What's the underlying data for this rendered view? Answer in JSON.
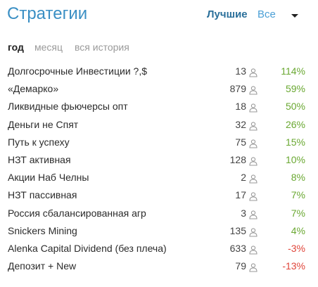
{
  "header": {
    "title": "Стратегии",
    "filter_best": "Лучшие",
    "filter_all": "Все",
    "dropdown_icon": "triangle-down-icon"
  },
  "periods": [
    {
      "label": "год",
      "active": true
    },
    {
      "label": "месяц",
      "active": false
    },
    {
      "label": "вся история",
      "active": false
    }
  ],
  "colors": {
    "title": "#3a8fc4",
    "positive": "#6aa832",
    "negative": "#e0453a",
    "muted": "#9a9a9a"
  },
  "strategies": [
    {
      "name": "Долгосрочные Инвестиции ?,$",
      "subscribers": "13",
      "return": "114%",
      "sign": "positive"
    },
    {
      "name": "«Демарко»",
      "subscribers": "879",
      "return": "59%",
      "sign": "positive"
    },
    {
      "name": "Ликвидные фьючерсы опт",
      "subscribers": "18",
      "return": "50%",
      "sign": "positive"
    },
    {
      "name": "Деньги не Спят",
      "subscribers": "32",
      "return": "26%",
      "sign": "positive"
    },
    {
      "name": "Путь к успеху",
      "subscribers": "75",
      "return": "15%",
      "sign": "positive"
    },
    {
      "name": "НЗТ активная",
      "subscribers": "128",
      "return": "10%",
      "sign": "positive"
    },
    {
      "name": "Акции Наб Челны",
      "subscribers": "2",
      "return": "8%",
      "sign": "positive"
    },
    {
      "name": "НЗТ пассивная",
      "subscribers": "17",
      "return": "7%",
      "sign": "positive"
    },
    {
      "name": "Россия сбалансированная агр",
      "subscribers": "3",
      "return": "7%",
      "sign": "positive"
    },
    {
      "name": "Snickers Mining",
      "subscribers": "135",
      "return": "4%",
      "sign": "positive"
    },
    {
      "name": "Alenka Capital Dividend (без плеча)",
      "subscribers": "633",
      "return": "-3%",
      "sign": "negative"
    },
    {
      "name": "Депозит + New",
      "subscribers": "79",
      "return": "-13%",
      "sign": "negative"
    }
  ],
  "row_icon": "user-icon"
}
